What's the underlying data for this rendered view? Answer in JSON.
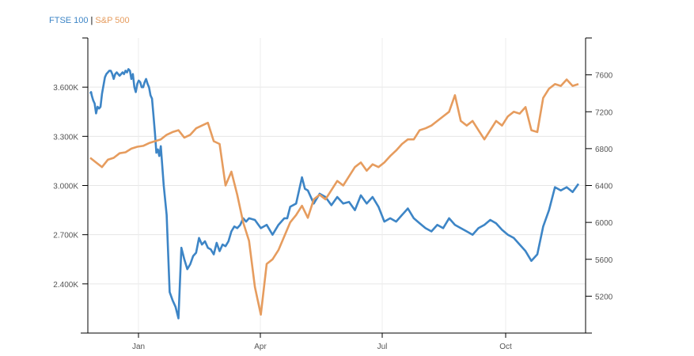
{
  "legend": {
    "separator": "|"
  },
  "chart_data": {
    "type": "line",
    "grid": true,
    "x_ticks": [
      "Jan",
      "Apr",
      "Jul",
      "Oct"
    ],
    "y_left": {
      "ticks": [
        "2.400K",
        "2.700K",
        "3.000K",
        "3.300K",
        "3.600K"
      ],
      "values": [
        2400,
        2700,
        3000,
        3300,
        3600
      ],
      "range": [
        2100,
        3900
      ]
    },
    "y_right": {
      "ticks": [
        "5200",
        "5600",
        "6000",
        "6400",
        "6800",
        "7200",
        "7600"
      ],
      "values": [
        5200,
        5600,
        6000,
        6400,
        6800,
        7200,
        7600
      ],
      "range": [
        4800,
        8000
      ]
    },
    "series": [
      {
        "name": "FTSE 100",
        "color": "#3d85c6",
        "axis": "left",
        "x": [
          0.0,
          0.3,
          0.5,
          1.0,
          1.5,
          2.0,
          2.5,
          3.0,
          3.5,
          4.0,
          5.0,
          5.5,
          6.0,
          6.5,
          7.0,
          7.5,
          8.0,
          8.5,
          9.0,
          9.5,
          10.0,
          10.5,
          11.0,
          11.5,
          12.0,
          12.5,
          13.0,
          13.5,
          14.0,
          14.5,
          15.0,
          15.5,
          16.0,
          16.5,
          17.0,
          17.5,
          18.0,
          18.5,
          19.0,
          19.5,
          20.0,
          20.5,
          21.0,
          21.5,
          22.0,
          22.5,
          23.0,
          23.5,
          24.0,
          25.0,
          26.0,
          27.0,
          28.0,
          29.0,
          30.0,
          31.0,
          32.0,
          33.0,
          34.0,
          35.0,
          36.0,
          37.0,
          38.0,
          39.0,
          40.0,
          41.0,
          42.0,
          43.0,
          44.0,
          45.0,
          46.0,
          47.0,
          48.0,
          49.0,
          50.0,
          51.0,
          52.0,
          53.0,
          54.0
        ],
        "y": [
          3560,
          3570,
          3550,
          3520,
          3500,
          3440,
          3480,
          3470,
          3480,
          3560,
          3660,
          3680,
          3690,
          3700,
          3700,
          3680,
          3650,
          3680,
          3690,
          3680,
          3670,
          3680,
          3690,
          3680,
          3700,
          3690,
          3710,
          3700,
          3650,
          3680,
          3600,
          3570,
          3620,
          3640,
          3630,
          3600,
          3600,
          3630,
          3650,
          3620,
          3600,
          3550,
          3530,
          3430,
          3320,
          3200,
          3220,
          3180,
          3240,
          3000,
          2820,
          2350,
          2300,
          2260,
          2190,
          2620,
          2550,
          2490,
          2520,
          2570,
          2590,
          2680,
          2640,
          2660,
          2620,
          2610,
          2580,
          2650,
          2600,
          2640,
          2630,
          2660,
          2720,
          2750,
          2740,
          2760,
          2800,
          2780,
          2800
        ],
        "segments": [
          [
            [
              54.0,
              2800
            ],
            [
              56.0,
              2790
            ],
            [
              58.0,
              2740
            ],
            [
              60.0,
              2760
            ],
            [
              62.0,
              2700
            ],
            [
              64.0,
              2760
            ],
            [
              66.0,
              2800
            ],
            [
              67.0,
              2800
            ],
            [
              68.0,
              2870
            ],
            [
              70.0,
              2890
            ],
            [
              72.0,
              3050
            ],
            [
              73.0,
              2980
            ],
            [
              74.0,
              2970
            ],
            [
              76.0,
              2890
            ],
            [
              78.0,
              2950
            ],
            [
              80.0,
              2930
            ],
            [
              82.0,
              2880
            ],
            [
              84.0,
              2930
            ],
            [
              86.0,
              2890
            ],
            [
              88.0,
              2900
            ],
            [
              90.0,
              2850
            ],
            [
              92.0,
              2940
            ],
            [
              94.0,
              2890
            ],
            [
              96.0,
              2930
            ],
            [
              98.0,
              2870
            ],
            [
              100.0,
              2780
            ],
            [
              102.0,
              2800
            ],
            [
              104.0,
              2780
            ],
            [
              106.0,
              2820
            ],
            [
              108.0,
              2860
            ],
            [
              110.0,
              2800
            ],
            [
              112.0,
              2770
            ],
            [
              114.0,
              2740
            ],
            [
              116.0,
              2720
            ],
            [
              118.0,
              2760
            ],
            [
              120.0,
              2740
            ],
            [
              122.0,
              2800
            ],
            [
              124.0,
              2760
            ],
            [
              126.0,
              2740
            ],
            [
              128.0,
              2720
            ],
            [
              130.0,
              2700
            ],
            [
              132.0,
              2740
            ],
            [
              134.0,
              2760
            ],
            [
              136.0,
              2790
            ],
            [
              138.0,
              2770
            ],
            [
              140.0,
              2730
            ],
            [
              142.0,
              2700
            ],
            [
              144.0,
              2680
            ],
            [
              146.0,
              2640
            ],
            [
              148.0,
              2600
            ],
            [
              150.0,
              2540
            ],
            [
              152.0,
              2580
            ],
            [
              154.0,
              2750
            ],
            [
              156.0,
              2850
            ],
            [
              158.0,
              2990
            ],
            [
              160.0,
              2970
            ],
            [
              162.0,
              2990
            ],
            [
              164.0,
              2960
            ],
            [
              166.0,
              3010
            ]
          ]
        ]
      },
      {
        "name": "S&P 500",
        "color": "#e69c5e",
        "axis": "right",
        "points": [
          [
            0,
            6700
          ],
          [
            2,
            6650
          ],
          [
            4,
            6600
          ],
          [
            6,
            6680
          ],
          [
            8,
            6700
          ],
          [
            10,
            6750
          ],
          [
            12,
            6760
          ],
          [
            14,
            6800
          ],
          [
            16,
            6820
          ],
          [
            18,
            6830
          ],
          [
            20,
            6860
          ],
          [
            22,
            6880
          ],
          [
            24,
            6900
          ],
          [
            26,
            6950
          ],
          [
            28,
            6980
          ],
          [
            30,
            7000
          ],
          [
            32,
            6920
          ],
          [
            34,
            6950
          ],
          [
            36,
            7020
          ],
          [
            38,
            7050
          ],
          [
            40,
            7080
          ],
          [
            42,
            6880
          ],
          [
            44,
            6850
          ],
          [
            46,
            6400
          ],
          [
            48,
            6550
          ],
          [
            50,
            6300
          ],
          [
            52,
            6000
          ],
          [
            54,
            5800
          ],
          [
            56,
            5300
          ],
          [
            58,
            5000
          ],
          [
            60,
            5550
          ],
          [
            62,
            5600
          ],
          [
            64,
            5700
          ],
          [
            66,
            5850
          ],
          [
            68,
            6000
          ],
          [
            70,
            6080
          ],
          [
            72,
            6180
          ],
          [
            74,
            6050
          ],
          [
            76,
            6250
          ],
          [
            78,
            6300
          ],
          [
            80,
            6250
          ],
          [
            82,
            6350
          ],
          [
            84,
            6450
          ],
          [
            86,
            6400
          ],
          [
            88,
            6500
          ],
          [
            90,
            6600
          ],
          [
            92,
            6650
          ],
          [
            94,
            6560
          ],
          [
            96,
            6630
          ],
          [
            98,
            6600
          ],
          [
            100,
            6650
          ],
          [
            102,
            6720
          ],
          [
            104,
            6780
          ],
          [
            106,
            6850
          ],
          [
            108,
            6900
          ],
          [
            110,
            6900
          ],
          [
            112,
            7000
          ],
          [
            114,
            7020
          ],
          [
            116,
            7050
          ],
          [
            118,
            7100
          ],
          [
            120,
            7150
          ],
          [
            122,
            7200
          ],
          [
            124,
            7380
          ],
          [
            126,
            7100
          ],
          [
            128,
            7050
          ],
          [
            130,
            7100
          ],
          [
            132,
            7000
          ],
          [
            134,
            6900
          ],
          [
            136,
            7000
          ],
          [
            138,
            7100
          ],
          [
            140,
            7050
          ],
          [
            142,
            7150
          ],
          [
            144,
            7200
          ],
          [
            146,
            7180
          ],
          [
            148,
            7250
          ],
          [
            150,
            7000
          ],
          [
            152,
            6980
          ],
          [
            154,
            7350
          ],
          [
            156,
            7450
          ],
          [
            158,
            7500
          ],
          [
            160,
            7480
          ],
          [
            162,
            7550
          ],
          [
            164,
            7480
          ],
          [
            166,
            7500
          ]
        ]
      }
    ]
  }
}
